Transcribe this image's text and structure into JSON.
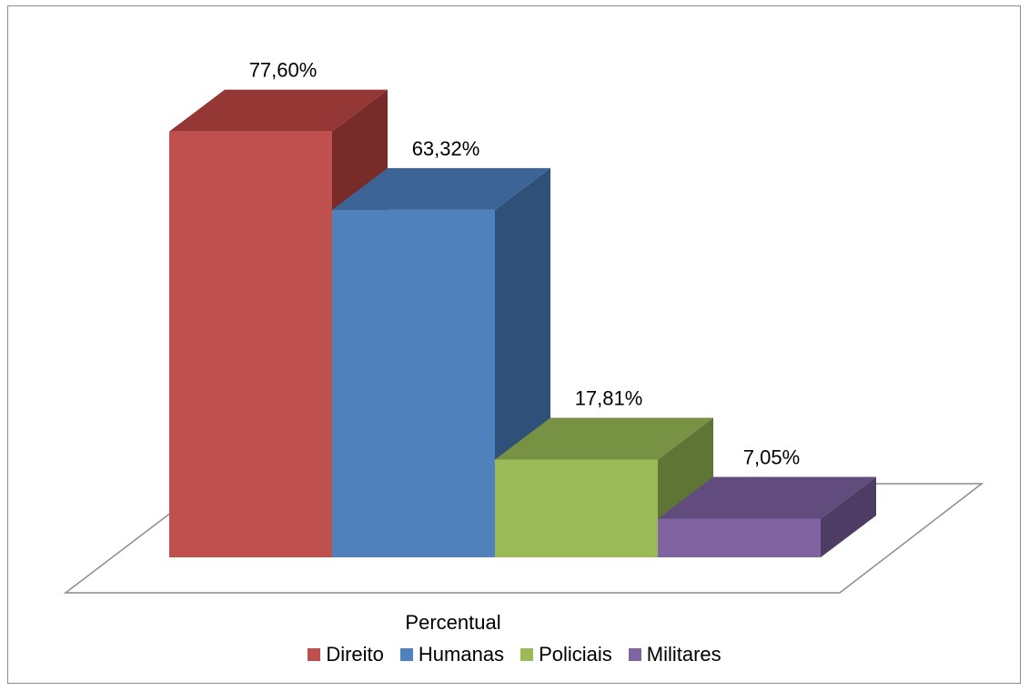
{
  "chart_data": {
    "type": "bar",
    "title": "",
    "xlabel": "",
    "ylabel": "",
    "category_label": "Percentual",
    "categories": [
      "Percentual"
    ],
    "series": [
      {
        "name": "Direito",
        "value": 77.6,
        "label": "77,60%",
        "color": "#c0504d",
        "top_color": "#953735",
        "side_color": "#772c2a"
      },
      {
        "name": "Humanas",
        "value": 63.32,
        "label": "63,32%",
        "color": "#4f81bd",
        "top_color": "#3c6496",
        "side_color": "#2f5079"
      },
      {
        "name": "Policiais",
        "value": 17.81,
        "label": "17,81%",
        "color": "#9bbb59",
        "top_color": "#779243",
        "side_color": "#5f7536"
      },
      {
        "name": "Militares",
        "value": 7.05,
        "label": "7,05%",
        "color": "#8064a2",
        "top_color": "#624c7d",
        "side_color": "#4e3c64"
      }
    ],
    "ylim": [
      0,
      90
    ],
    "grid": false,
    "legend_position": "bottom"
  }
}
